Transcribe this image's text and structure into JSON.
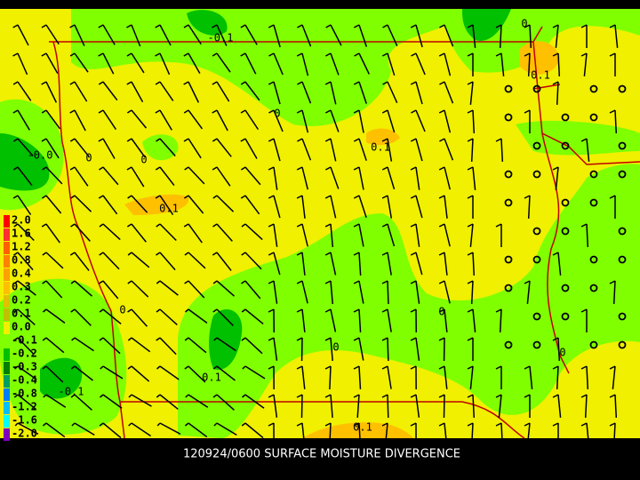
{
  "caption": "120924/0600 SURFACE MOISTURE DIVERGENCE",
  "legend": {
    "labels": [
      "2.0",
      "1.6",
      "1.2",
      "0.8",
      "0.4",
      "0.3",
      "0.2",
      "0.1",
      "0.0",
      "-0.1",
      "-0.2",
      "-0.3",
      "-0.4",
      "-0.8",
      "-1.2",
      "-1.6",
      "-2.0"
    ]
  },
  "contour_labels": [
    "-0.1",
    "0",
    "0.1",
    "-0.0",
    "0",
    "0",
    "0.1",
    "0",
    "0",
    "0",
    "0.1",
    "-0.1",
    "0.1",
    "0",
    "0",
    "0.1"
  ]
}
